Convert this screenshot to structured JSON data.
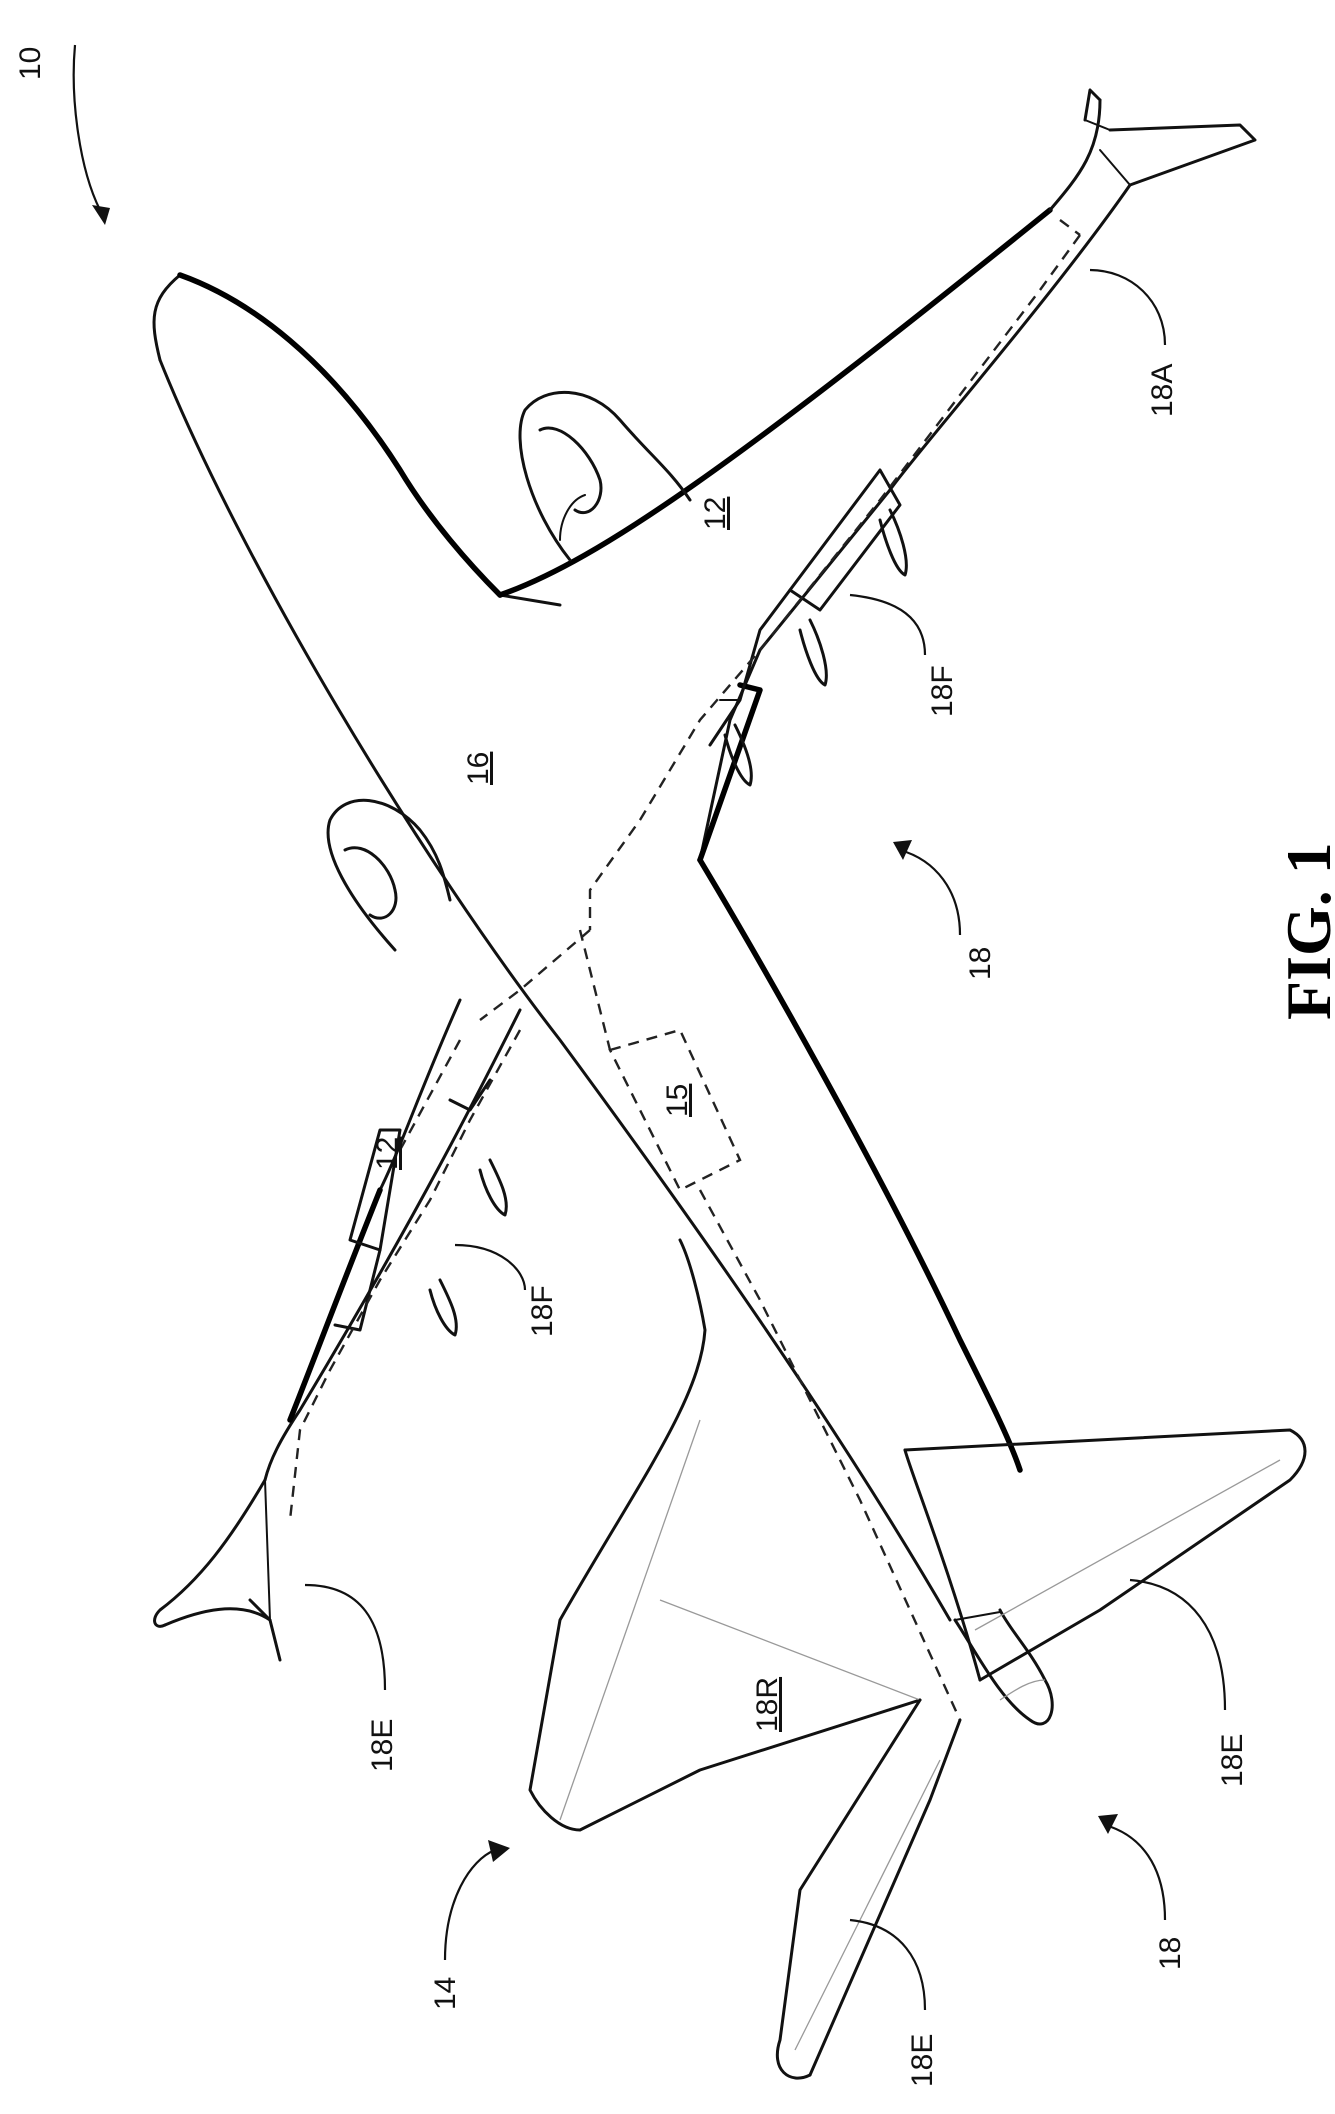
{
  "figure": {
    "caption": "FIG. 1"
  },
  "reference_numerals": {
    "aircraft": "10",
    "wing_right": "12",
    "wing_left": "12",
    "tail_assembly": "14",
    "controller": "15",
    "fuselage": "16",
    "control_surfaces_center": "18",
    "control_surfaces_tail": "18",
    "aileron": "18A",
    "flap_right": "18F",
    "flap_left": "18F",
    "elevator_left_wingtip": "18E",
    "elevator_right": "18E",
    "elevator_bottom": "18E",
    "rudder": "18R"
  }
}
